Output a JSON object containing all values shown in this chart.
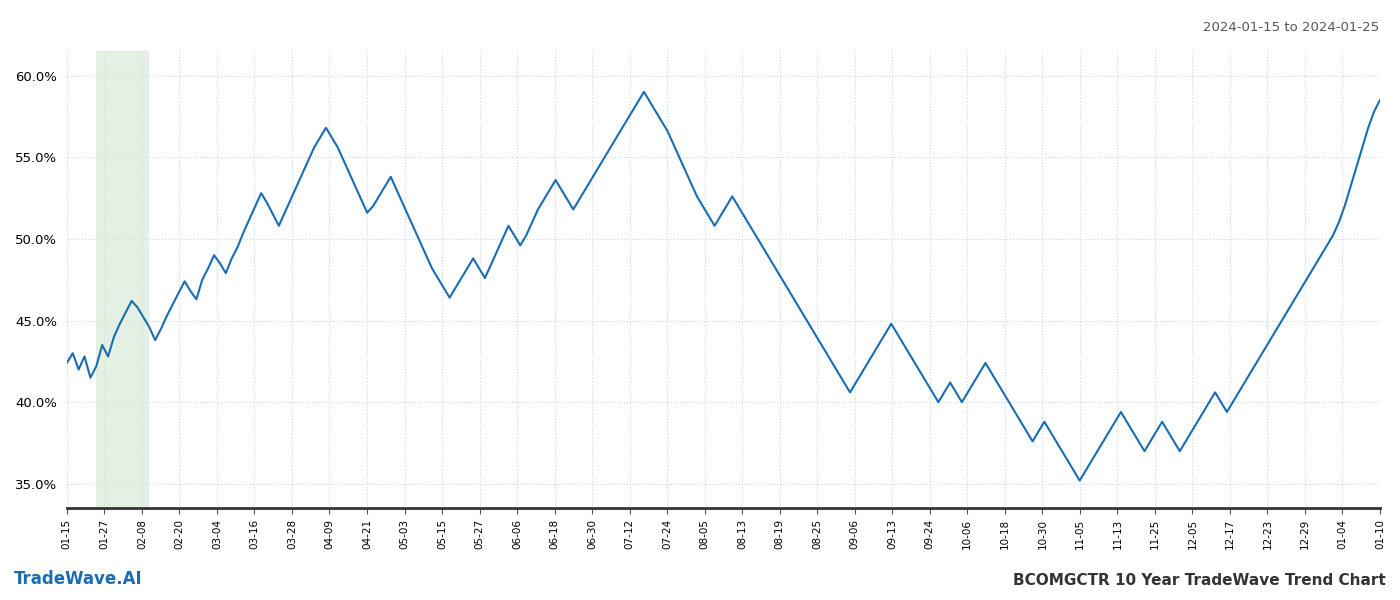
{
  "title_right": "2024-01-15 to 2024-01-25",
  "title_bottom_left": "TradeWave.AI",
  "title_bottom_right": "BCOMGCTR 10 Year TradeWave Trend Chart",
  "ylim": [
    0.335,
    0.615
  ],
  "yticks": [
    0.35,
    0.4,
    0.45,
    0.5,
    0.55,
    0.6
  ],
  "line_color": "#1a6db5",
  "line_width": 1.5,
  "background_color": "#ffffff",
  "grid_color": "#c8d8e8",
  "grid_style": ":",
  "shade_color": "#d8ead8",
  "shade_alpha": 0.7,
  "x_labels": [
    "01-15",
    "01-27",
    "02-08",
    "02-20",
    "03-04",
    "03-16",
    "03-28",
    "04-09",
    "04-21",
    "05-03",
    "05-15",
    "05-27",
    "06-06",
    "06-18",
    "06-30",
    "07-12",
    "07-24",
    "08-05",
    "08-13",
    "08-19",
    "08-25",
    "09-06",
    "09-13",
    "09-24",
    "10-06",
    "10-18",
    "10-30",
    "11-05",
    "11-13",
    "11-25",
    "12-05",
    "12-17",
    "12-23",
    "12-29",
    "01-04",
    "01-10"
  ],
  "values": [
    0.424,
    0.43,
    0.42,
    0.428,
    0.415,
    0.422,
    0.435,
    0.428,
    0.44,
    0.448,
    0.455,
    0.462,
    0.458,
    0.452,
    0.446,
    0.438,
    0.445,
    0.453,
    0.46,
    0.467,
    0.474,
    0.468,
    0.463,
    0.475,
    0.482,
    0.49,
    0.485,
    0.479,
    0.488,
    0.495,
    0.504,
    0.512,
    0.52,
    0.528,
    0.522,
    0.515,
    0.508,
    0.516,
    0.524,
    0.532,
    0.54,
    0.548,
    0.556,
    0.562,
    0.568,
    0.562,
    0.556,
    0.548,
    0.54,
    0.532,
    0.524,
    0.516,
    0.52,
    0.526,
    0.532,
    0.538,
    0.53,
    0.522,
    0.514,
    0.506,
    0.498,
    0.49,
    0.482,
    0.476,
    0.47,
    0.464,
    0.47,
    0.476,
    0.482,
    0.488,
    0.482,
    0.476,
    0.484,
    0.492,
    0.5,
    0.508,
    0.502,
    0.496,
    0.502,
    0.51,
    0.518,
    0.524,
    0.53,
    0.536,
    0.53,
    0.524,
    0.518,
    0.524,
    0.53,
    0.536,
    0.542,
    0.548,
    0.554,
    0.56,
    0.566,
    0.572,
    0.578,
    0.584,
    0.59,
    0.584,
    0.578,
    0.572,
    0.566,
    0.558,
    0.55,
    0.542,
    0.534,
    0.526,
    0.52,
    0.514,
    0.508,
    0.514,
    0.52,
    0.526,
    0.52,
    0.514,
    0.508,
    0.502,
    0.496,
    0.49,
    0.484,
    0.478,
    0.472,
    0.466,
    0.46,
    0.454,
    0.448,
    0.442,
    0.436,
    0.43,
    0.424,
    0.418,
    0.412,
    0.406,
    0.412,
    0.418,
    0.424,
    0.43,
    0.436,
    0.442,
    0.448,
    0.442,
    0.436,
    0.43,
    0.424,
    0.418,
    0.412,
    0.406,
    0.4,
    0.406,
    0.412,
    0.406,
    0.4,
    0.406,
    0.412,
    0.418,
    0.424,
    0.418,
    0.412,
    0.406,
    0.4,
    0.394,
    0.388,
    0.382,
    0.376,
    0.382,
    0.388,
    0.382,
    0.376,
    0.37,
    0.364,
    0.358,
    0.352,
    0.358,
    0.364,
    0.37,
    0.376,
    0.382,
    0.388,
    0.394,
    0.388,
    0.382,
    0.376,
    0.37,
    0.376,
    0.382,
    0.388,
    0.382,
    0.376,
    0.37,
    0.376,
    0.382,
    0.388,
    0.394,
    0.4,
    0.406,
    0.4,
    0.394,
    0.4,
    0.406,
    0.412,
    0.418,
    0.424,
    0.43,
    0.436,
    0.442,
    0.448,
    0.454,
    0.46,
    0.466,
    0.472,
    0.478,
    0.484,
    0.49,
    0.496,
    0.502,
    0.51,
    0.52,
    0.532,
    0.544,
    0.556,
    0.568,
    0.578,
    0.585
  ]
}
